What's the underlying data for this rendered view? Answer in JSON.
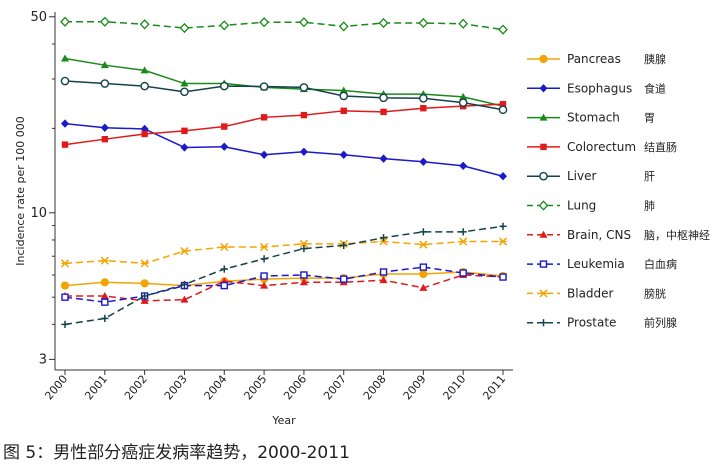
{
  "caption": "图 5：男性部分癌症发病率趋势，2000-2011",
  "chart_data": {
    "type": "line",
    "xlabel": "Year",
    "ylabel": "Incidence rate per 100 000",
    "yscale": "log",
    "ylim": [
      2.75,
      52
    ],
    "yticks": [
      3,
      10,
      50
    ],
    "ytick_labels": [
      "3",
      "10",
      "50"
    ],
    "x": [
      "2000",
      "2001",
      "2002",
      "2003",
      "2004",
      "2005",
      "2006",
      "2007",
      "2008",
      "2009",
      "2010",
      "2011"
    ],
    "grid": false,
    "legend_position": "right",
    "series": [
      {
        "name": "Pancreas",
        "name_zh": "胰腺",
        "color": "#f5a300",
        "dash": "solid",
        "marker": "circle-filled",
        "values": [
          5.5,
          5.65,
          5.6,
          5.5,
          5.7,
          5.8,
          5.85,
          5.85,
          6.05,
          6.05,
          6.15,
          5.95
        ]
      },
      {
        "name": "Esophagus",
        "name_zh": "食道",
        "color": "#1a1acc",
        "dash": "solid",
        "marker": "diamond-filled",
        "values": [
          20.8,
          20.1,
          19.9,
          17.1,
          17.2,
          16.1,
          16.5,
          16.1,
          15.6,
          15.2,
          14.7,
          13.5
        ]
      },
      {
        "name": "Stomach",
        "name_zh": "胃",
        "color": "#1a8a1a",
        "dash": "solid",
        "marker": "triangle-filled",
        "values": [
          35.5,
          33.6,
          32.2,
          28.9,
          28.9,
          28.0,
          27.6,
          27.3,
          26.5,
          26.5,
          25.9,
          24.0
        ]
      },
      {
        "name": "Colorectum",
        "name_zh": "结直肠",
        "color": "#e01a1a",
        "dash": "solid",
        "marker": "square-filled",
        "values": [
          17.5,
          18.3,
          19.1,
          19.6,
          20.3,
          21.9,
          22.3,
          23.1,
          22.9,
          23.6,
          24.0,
          24.4
        ]
      },
      {
        "name": "Liver",
        "name_zh": "肝",
        "color": "#14424a",
        "dash": "solid",
        "marker": "circle-open",
        "values": [
          29.5,
          28.9,
          28.3,
          27.0,
          28.3,
          28.2,
          28.0,
          26.1,
          25.7,
          25.6,
          24.7,
          23.3
        ]
      },
      {
        "name": "Lung",
        "name_zh": "肺",
        "color": "#1a8a1a",
        "dash": "dashed",
        "marker": "diamond-open",
        "values": [
          48.0,
          48.0,
          47.0,
          45.6,
          46.6,
          47.8,
          47.8,
          46.2,
          47.5,
          47.5,
          47.2,
          45.0
        ]
      },
      {
        "name": "Brain, CNS",
        "name_zh": "脑，中枢神经",
        "color": "#e01a1a",
        "dash": "dashed",
        "marker": "triangle-filled",
        "values": [
          5.05,
          5.05,
          4.85,
          4.9,
          5.7,
          5.5,
          5.65,
          5.65,
          5.75,
          5.4,
          6.0,
          5.9
        ]
      },
      {
        "name": "Leukemia",
        "name_zh": "白血病",
        "color": "#1a1acc",
        "dash": "dashed",
        "marker": "square-open",
        "values": [
          5.0,
          4.8,
          5.05,
          5.5,
          5.5,
          5.95,
          6.0,
          5.8,
          6.15,
          6.4,
          6.1,
          5.9
        ]
      },
      {
        "name": "Bladder",
        "name_zh": "膀胱",
        "color": "#f5a300",
        "dash": "dashed",
        "marker": "x",
        "values": [
          6.6,
          6.75,
          6.6,
          7.3,
          7.55,
          7.55,
          7.75,
          7.75,
          7.9,
          7.7,
          7.9,
          7.9
        ]
      },
      {
        "name": "Prostate",
        "name_zh": "前列腺",
        "color": "#14424a",
        "dash": "dashed",
        "marker": "plus",
        "values": [
          4.0,
          4.2,
          5.05,
          5.55,
          6.3,
          6.85,
          7.45,
          7.65,
          8.15,
          8.55,
          8.55,
          8.95
        ]
      }
    ]
  }
}
